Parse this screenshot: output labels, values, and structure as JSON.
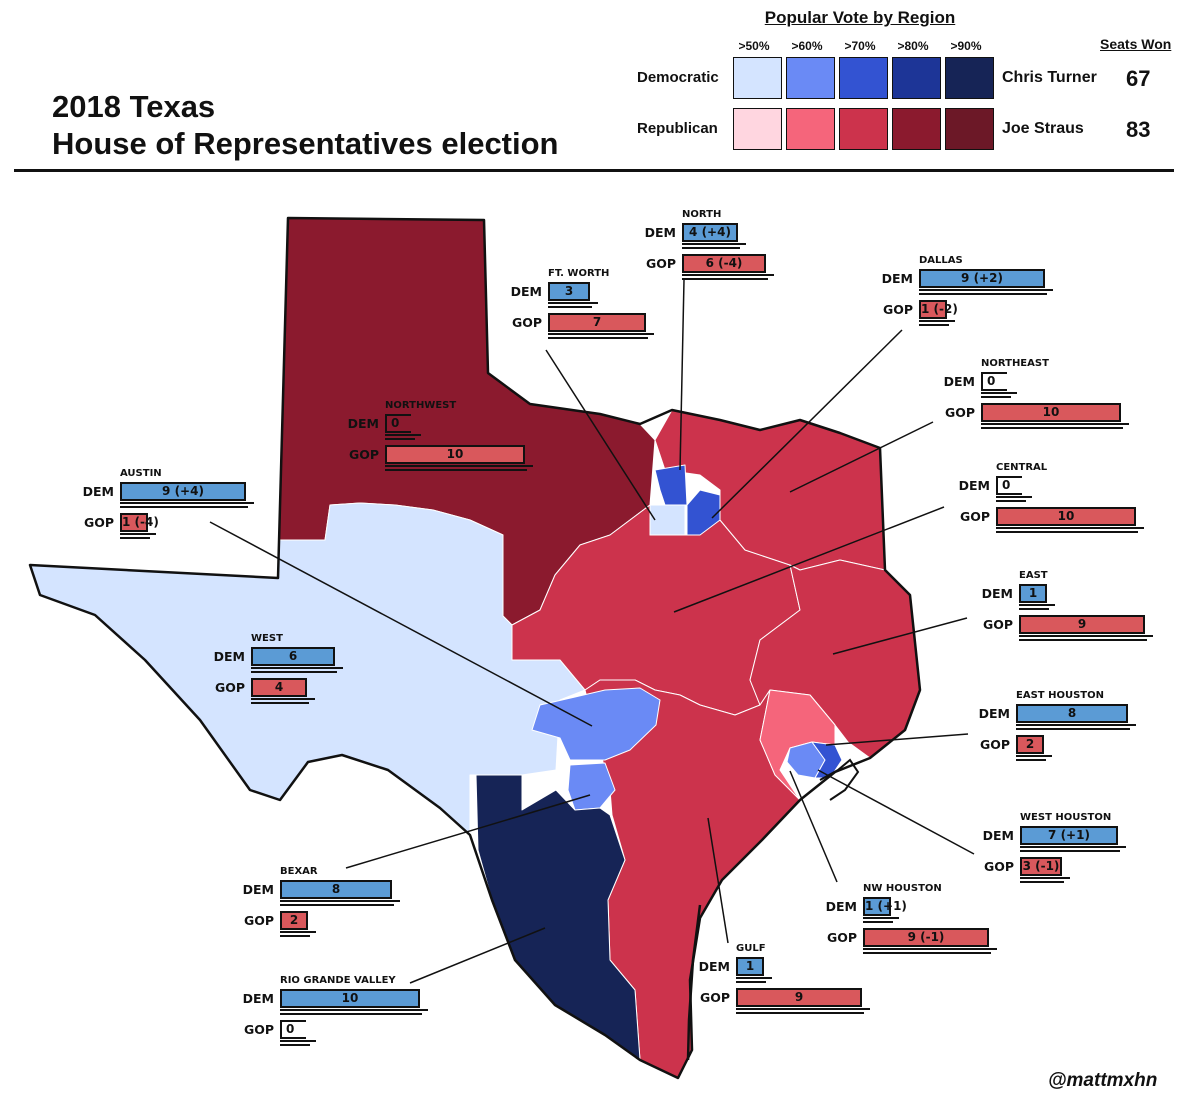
{
  "title": {
    "line1": "2018 Texas",
    "line2": "House of Representatives election"
  },
  "legend": {
    "title": "Popular Vote by Region",
    "tiers": [
      ">50%",
      ">60%",
      ">70%",
      ">80%",
      ">90%"
    ],
    "democratic_label": "Democratic",
    "republican_label": "Republican",
    "democratic_colors": [
      "#d4e4ff",
      "#6a8af5",
      "#3353d2",
      "#1d3597",
      "#162456"
    ],
    "republican_colors": [
      "#ffd6e0",
      "#f5657b",
      "#cc334c",
      "#8b1a2e",
      "#6c1827"
    ]
  },
  "seats": {
    "title": "Seats Won",
    "dem_leader": "Chris Turner",
    "dem_seats": "67",
    "gop_leader": "Joe Straus",
    "gop_seats": "83"
  },
  "credit": "@mattmxhn",
  "dem_label": "DEM",
  "gop_label": "GOP",
  "regions": [
    {
      "name": "NORTH",
      "dem": 4,
      "dem_text": "4 (+4)",
      "gop": 6,
      "gop_text": "6 (-4)",
      "fill": "#3353d2"
    },
    {
      "name": "FT. WORTH",
      "dem": 3,
      "dem_text": "3",
      "gop": 7,
      "gop_text": "7",
      "fill": "#d4e4ff"
    },
    {
      "name": "DALLAS",
      "dem": 9,
      "dem_text": "9 (+2)",
      "gop": 1,
      "gop_text": "1 (-2)",
      "fill": "#3353d2"
    },
    {
      "name": "NORTHEAST",
      "dem": 0,
      "dem_text": "0",
      "gop": 10,
      "gop_text": "10",
      "fill": "#cc334c"
    },
    {
      "name": "NORTHWEST",
      "dem": 0,
      "dem_text": "0",
      "gop": 10,
      "gop_text": "10",
      "fill": "#8b1a2e"
    },
    {
      "name": "AUSTIN",
      "dem": 9,
      "dem_text": "9 (+4)",
      "gop": 1,
      "gop_text": "1 (-4)",
      "fill": "#6a8af5"
    },
    {
      "name": "CENTRAL",
      "dem": 0,
      "dem_text": "0",
      "gop": 10,
      "gop_text": "10",
      "fill": "#cc334c"
    },
    {
      "name": "EAST",
      "dem": 1,
      "dem_text": "1",
      "gop": 9,
      "gop_text": "9",
      "fill": "#cc334c"
    },
    {
      "name": "WEST",
      "dem": 6,
      "dem_text": "6",
      "gop": 4,
      "gop_text": "4",
      "fill": "#d4e4ff"
    },
    {
      "name": "EAST HOUSTON",
      "dem": 8,
      "dem_text": "8",
      "gop": 2,
      "gop_text": "2",
      "fill": "#3353d2"
    },
    {
      "name": "WEST HOUSTON",
      "dem": 7,
      "dem_text": "7 (+1)",
      "gop": 3,
      "gop_text": "3 (-1)",
      "fill": "#6a8af5"
    },
    {
      "name": "BEXAR",
      "dem": 8,
      "dem_text": "8",
      "gop": 2,
      "gop_text": "2",
      "fill": "#6a8af5"
    },
    {
      "name": "NW HOUSTON",
      "dem": 1,
      "dem_text": "1 (+1)",
      "gop": 9,
      "gop_text": "9 (-1)",
      "fill": "#f5657b"
    },
    {
      "name": "GULF",
      "dem": 1,
      "dem_text": "1",
      "gop": 9,
      "gop_text": "9",
      "fill": "#cc334c"
    },
    {
      "name": "RIO GRANDE VALLEY",
      "dem": 10,
      "dem_text": "10",
      "gop": 0,
      "gop_text": "0",
      "fill": "#162456"
    }
  ]
}
